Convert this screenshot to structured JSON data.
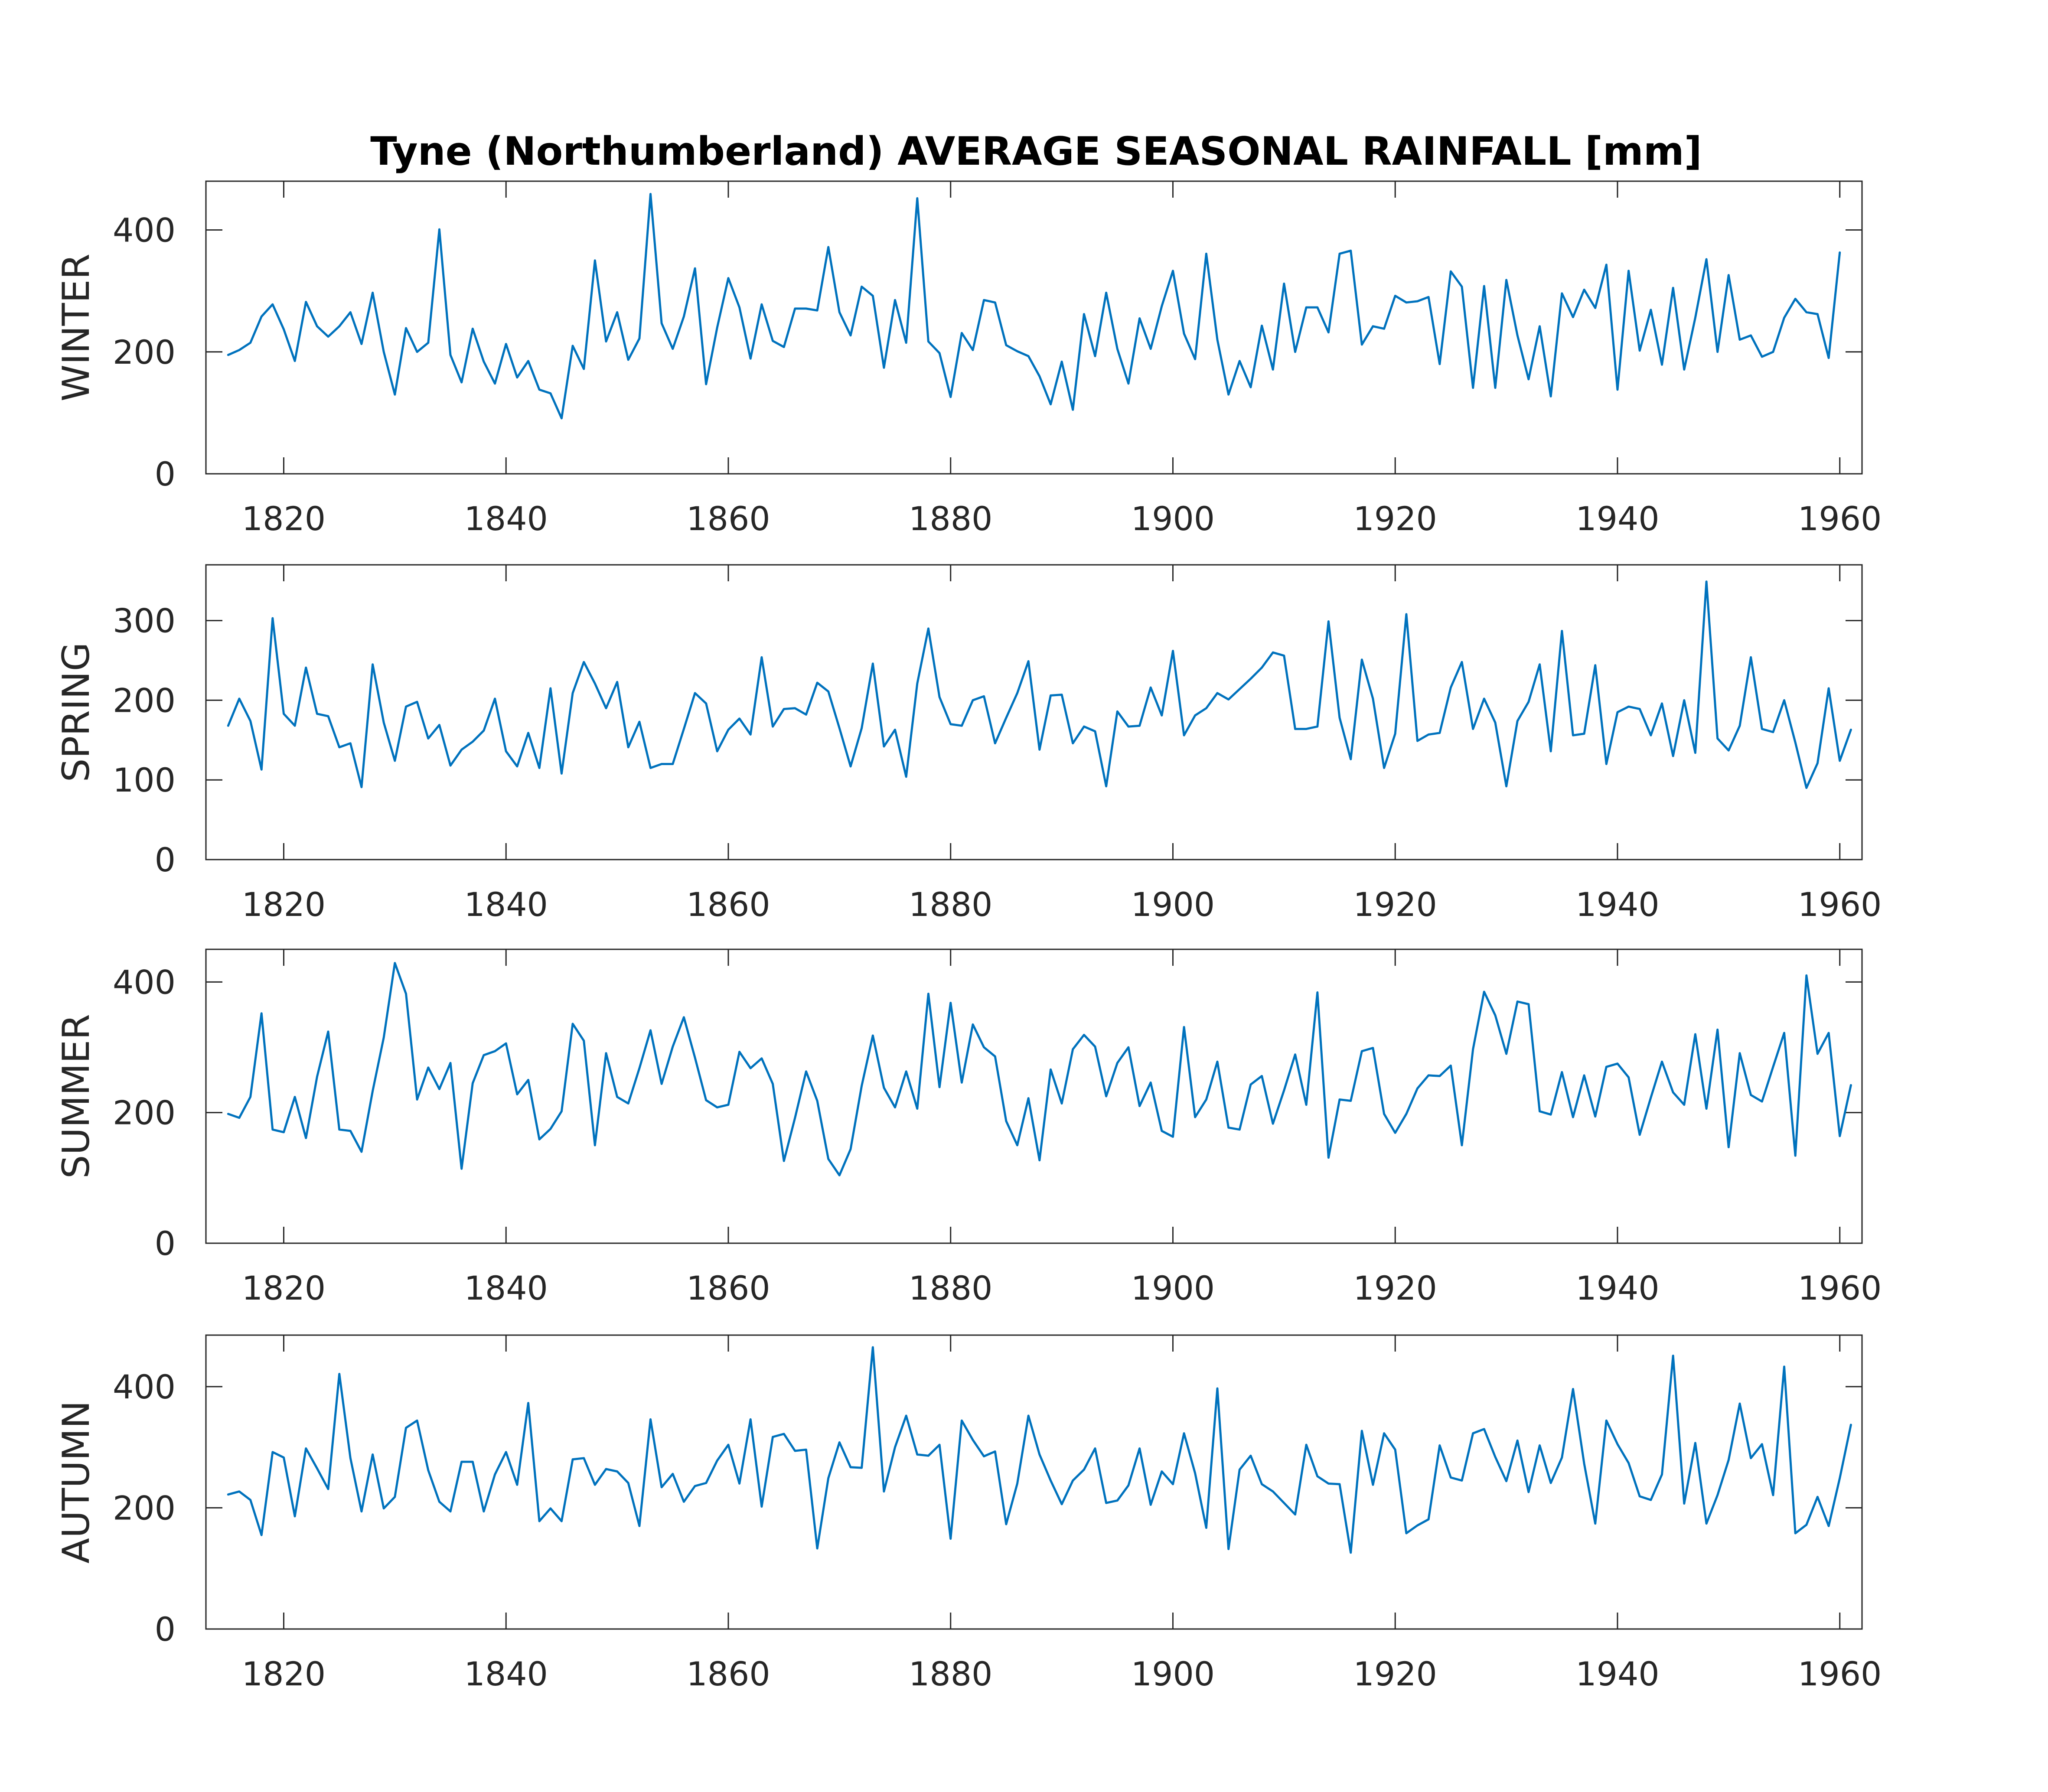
{
  "colors": {
    "line": "#0072bd",
    "axis": "#262626",
    "background": "#ffffff"
  },
  "chart_data": {
    "type": "line",
    "title": "Tyne (Northumberland) AVERAGE SEASONAL RAINFALL [mm]",
    "xlabel": "",
    "x_start": 1815,
    "x_end": 1960,
    "xlim": [
      1813,
      1962
    ],
    "xticks": [
      1820,
      1840,
      1860,
      1880,
      1900,
      1920,
      1940,
      1960
    ],
    "grid": false,
    "panels": [
      {
        "ylabel": "WINTER",
        "ylim": [
          0,
          480
        ],
        "yticks": [
          0,
          200,
          400
        ],
        "values": [
          195,
          203,
          215,
          258,
          278,
          237,
          185,
          282,
          242,
          225,
          242,
          265,
          213,
          297,
          200,
          130,
          239,
          200,
          215,
          401,
          195,
          150,
          238,
          184,
          148,
          213,
          158,
          185,
          138,
          132,
          91,
          210,
          172,
          350,
          217,
          265,
          187,
          222,
          459,
          247,
          205,
          258,
          337,
          147,
          240,
          321,
          273,
          189,
          278,
          218,
          208,
          271,
          271,
          268,
          372,
          265,
          227,
          307,
          292,
          174,
          285,
          215,
          452,
          217,
          198,
          126,
          231,
          203,
          285,
          281,
          211,
          201,
          193,
          160,
          114,
          184,
          105,
          262,
          193,
          297,
          205,
          148,
          255,
          205,
          275,
          333,
          230,
          188,
          361,
          220,
          130,
          185,
          142,
          243,
          171,
          312,
          200,
          273,
          273,
          232,
          361,
          366,
          212,
          242,
          238,
          292,
          281,
          283,
          290,
          180,
          332,
          307,
          141,
          308,
          141,
          318,
          227,
          155,
          242,
          127,
          296,
          257,
          302,
          272,
          343,
          138,
          333,
          202,
          269,
          179,
          305,
          171,
          256,
          352,
          200,
          326,
          220,
          227,
          192,
          200,
          256,
          287,
          265,
          262,
          190,
          363
        ]
      },
      {
        "ylabel": "SPRING",
        "ylim": [
          0,
          370
        ],
        "yticks": [
          0,
          100,
          200,
          300
        ],
        "values": [
          168,
          202,
          174,
          113,
          303,
          183,
          168,
          241,
          183,
          180,
          141,
          146,
          91,
          245,
          172,
          124,
          192,
          198,
          152,
          169,
          118,
          138,
          148,
          162,
          202,
          136,
          117,
          159,
          115,
          215,
          108,
          209,
          248,
          221,
          190,
          223,
          141,
          173,
          115,
          120,
          120,
          164,
          209,
          196,
          136,
          163,
          177,
          157,
          254,
          167,
          189,
          190,
          182,
          222,
          211,
          165,
          117,
          165,
          246,
          142,
          163,
          104,
          221,
          290,
          204,
          170,
          168,
          200,
          205,
          146,
          178,
          209,
          249,
          138,
          206,
          207,
          146,
          167,
          161,
          92,
          186,
          167,
          168,
          216,
          181,
          262,
          156,
          181,
          190,
          209,
          201,
          214,
          227,
          241,
          260,
          256,
          164,
          164,
          167,
          299,
          178,
          126,
          251,
          202,
          115,
          158,
          308,
          149,
          157,
          159,
          216,
          248,
          164,
          202,
          172,
          92,
          174,
          198,
          245,
          136,
          287,
          156,
          158,
          244,
          120,
          185,
          192,
          189,
          156,
          196,
          130,
          200,
          134,
          349,
          152,
          137,
          168,
          254,
          164,
          160,
          200,
          147,
          90,
          121,
          215,
          124,
          163
        ]
      },
      {
        "ylabel": "SUMMER",
        "ylim": [
          0,
          450
        ],
        "yticks": [
          0,
          200,
          400
        ],
        "values": [
          198,
          192,
          224,
          352,
          174,
          170,
          224,
          161,
          255,
          324,
          174,
          172,
          140,
          233,
          315,
          429,
          382,
          220,
          269,
          236,
          276,
          114,
          245,
          288,
          294,
          306,
          228,
          250,
          159,
          175,
          202,
          336,
          310,
          150,
          291,
          224,
          214,
          268,
          326,
          244,
          301,
          346,
          284,
          219,
          208,
          212,
          293,
          268,
          283,
          244,
          126,
          192,
          263,
          218,
          129,
          104,
          144,
          241,
          318,
          238,
          208,
          263,
          206,
          382,
          239,
          368,
          246,
          335,
          300,
          286,
          187,
          150,
          222,
          127,
          266,
          214,
          297,
          319,
          301,
          225,
          276,
          300,
          210,
          246,
          172,
          163,
          331,
          193,
          220,
          278,
          177,
          174,
          243,
          256,
          183,
          234,
          289,
          212,
          384,
          131,
          220,
          218,
          294,
          299,
          198,
          169,
          198,
          237,
          257,
          256,
          272,
          150,
          297,
          385,
          349,
          290,
          370,
          366,
          202,
          197,
          262,
          193,
          257,
          194,
          270,
          275,
          254,
          166,
          223,
          278,
          231,
          212,
          320,
          206,
          327,
          147,
          291,
          227,
          217,
          270,
          322,
          134,
          410,
          290,
          322,
          164,
          242
        ]
      },
      {
        "ylabel": "AUTUMN",
        "ylim": [
          0,
          485
        ],
        "yticks": [
          0,
          200,
          400
        ],
        "values": [
          222,
          227,
          213,
          155,
          292,
          283,
          186,
          298,
          265,
          231,
          421,
          282,
          194,
          288,
          199,
          218,
          332,
          344,
          262,
          210,
          194,
          276,
          276,
          194,
          255,
          292,
          238,
          373,
          178,
          199,
          178,
          280,
          282,
          238,
          264,
          260,
          241,
          170,
          346,
          234,
          256,
          210,
          236,
          241,
          278,
          304,
          240,
          346,
          202,
          317,
          322,
          294,
          296,
          133,
          249,
          308,
          267,
          266,
          465,
          227,
          300,
          352,
          288,
          286,
          304,
          149,
          344,
          312,
          285,
          293,
          173,
          240,
          352,
          288,
          245,
          206,
          245,
          263,
          298,
          208,
          212,
          237,
          298,
          205,
          260,
          239,
          323,
          257,
          167,
          397,
          132,
          263,
          286,
          239,
          227,
          208,
          189,
          304,
          252,
          240,
          239,
          126,
          327,
          238,
          323,
          296,
          158,
          171,
          181,
          303,
          250,
          245,
          323,
          330,
          284,
          244,
          311,
          226,
          303,
          241,
          283,
          396,
          273,
          174,
          344,
          305,
          274,
          219,
          213,
          255,
          451,
          207,
          307,
          174,
          221,
          279,
          372,
          282,
          305,
          221,
          433,
          158,
          172,
          218,
          170,
          249,
          337
        ]
      }
    ]
  }
}
